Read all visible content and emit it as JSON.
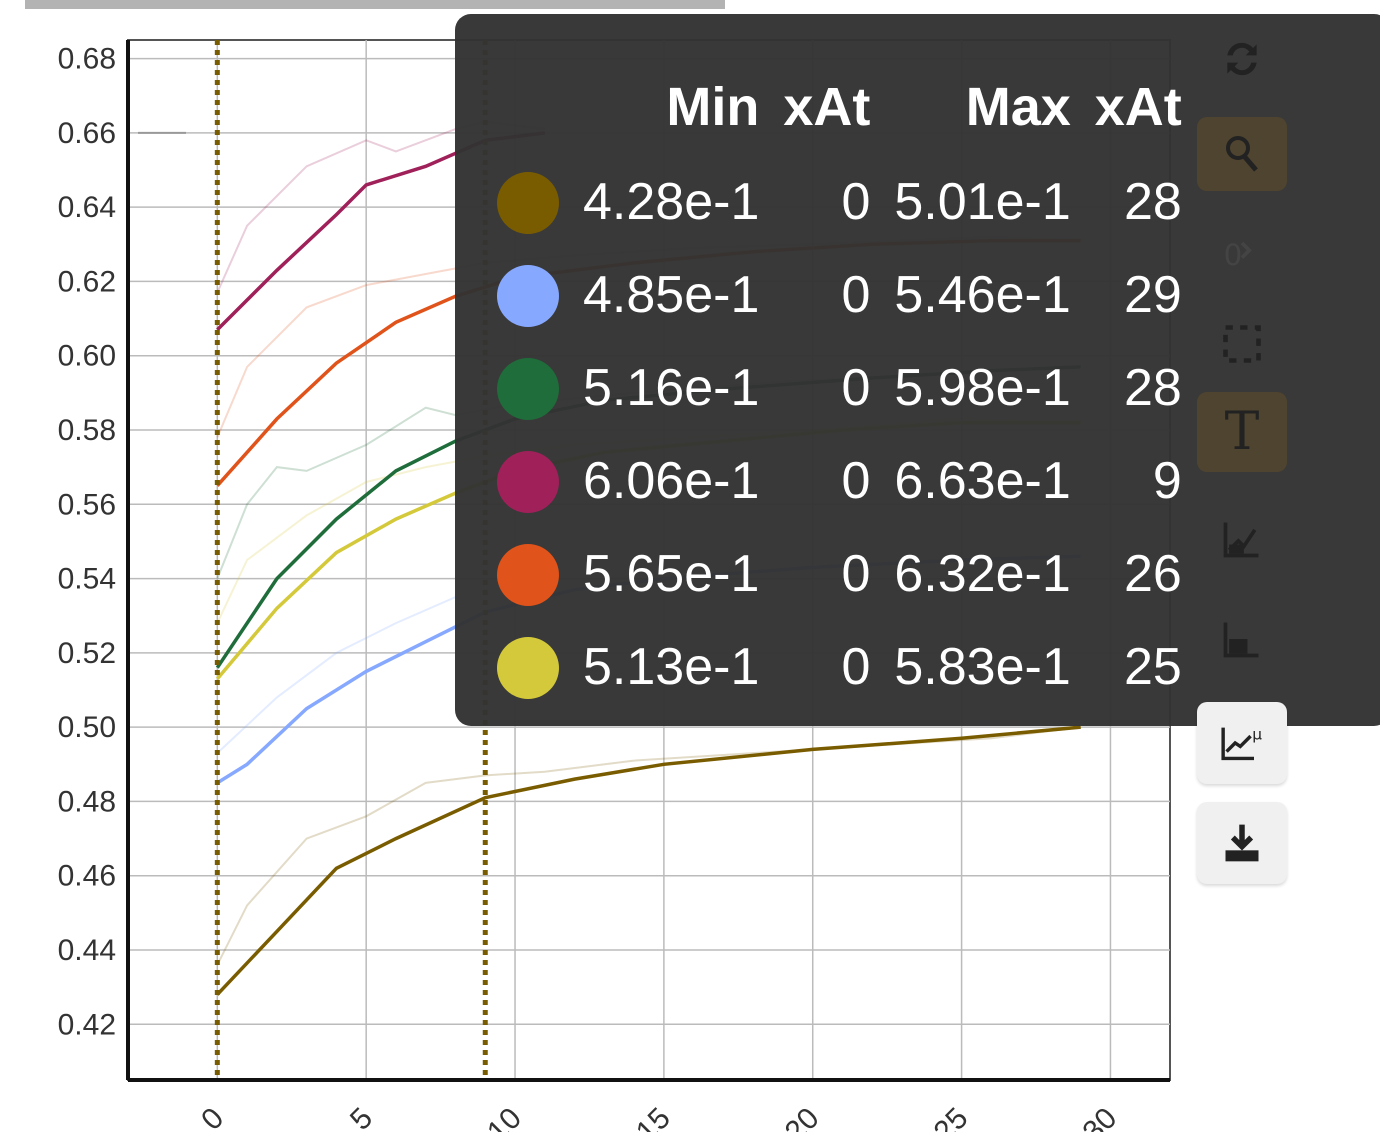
{
  "colors": {
    "line_dark": "#7a5c00",
    "blue": "#86a8ff",
    "green": "#1f6d3a",
    "crimson": "#a0205a",
    "orange": "#e0531a",
    "yellow": "#d4c93a",
    "tooltip_bg": "#333333",
    "grid": "#bbbbbb"
  },
  "toolbar": {
    "icons": [
      "reset-icon",
      "zoom-icon",
      "pan-icon",
      "select-icon",
      "text-icon",
      "smooth-icon",
      "log-icon",
      "line-chart-icon",
      "download-icon"
    ]
  },
  "tooltip": {
    "headers": [
      "Min",
      "xAt",
      "Max",
      "xAt"
    ],
    "rows": [
      {
        "color": "#7a5c00",
        "min": "4.28e-1",
        "min_x": "0",
        "max": "5.01e-1",
        "max_x": "28"
      },
      {
        "color": "#86a8ff",
        "min": "4.85e-1",
        "min_x": "0",
        "max": "5.46e-1",
        "max_x": "29"
      },
      {
        "color": "#1f6d3a",
        "min": "5.16e-1",
        "min_x": "0",
        "max": "5.98e-1",
        "max_x": "28"
      },
      {
        "color": "#a0205a",
        "min": "6.06e-1",
        "min_x": "0",
        "max": "6.63e-1",
        "max_x": "9"
      },
      {
        "color": "#e0531a",
        "min": "5.65e-1",
        "min_x": "0",
        "max": "6.32e-1",
        "max_x": "26"
      },
      {
        "color": "#d4c93a",
        "min": "5.13e-1",
        "min_x": "0",
        "max": "5.83e-1",
        "max_x": "25"
      }
    ]
  },
  "chart_data": {
    "type": "line",
    "xlim": [
      -3,
      32
    ],
    "ylim": [
      0.405,
      0.685
    ],
    "x_ticks": [
      0,
      5,
      10,
      15,
      20,
      25,
      30
    ],
    "y_ticks": [
      "0.42",
      "0.44",
      "0.46",
      "0.48",
      "0.50",
      "0.52",
      "0.54",
      "0.56",
      "0.58",
      "0.60",
      "0.62",
      "0.64",
      "0.66",
      "0.68"
    ],
    "grid": true,
    "vertical_markers": [
      0,
      9
    ],
    "series": [
      {
        "color": "#7a5c00",
        "smoothed": [
          [
            0,
            0.428
          ],
          [
            2,
            0.445
          ],
          [
            4,
            0.462
          ],
          [
            6,
            0.47
          ],
          [
            9,
            0.481
          ],
          [
            12,
            0.486
          ],
          [
            15,
            0.49
          ],
          [
            20,
            0.494
          ],
          [
            25,
            0.497
          ],
          [
            29,
            0.5
          ]
        ],
        "raw": [
          [
            0,
            0.436
          ],
          [
            1,
            0.452
          ],
          [
            3,
            0.47
          ],
          [
            5,
            0.476
          ],
          [
            7,
            0.485
          ],
          [
            9,
            0.487
          ],
          [
            11,
            0.488
          ],
          [
            14,
            0.491
          ],
          [
            18,
            0.493
          ],
          [
            22,
            0.495
          ],
          [
            26,
            0.497
          ],
          [
            29,
            0.5
          ]
        ]
      },
      {
        "color": "#86a8ff",
        "smoothed": [
          [
            0,
            0.485
          ],
          [
            1,
            0.49
          ],
          [
            3,
            0.505
          ],
          [
            5,
            0.515
          ],
          [
            7,
            0.523
          ],
          [
            9,
            0.531
          ],
          [
            12,
            0.537
          ],
          [
            15,
            0.54
          ],
          [
            20,
            0.543
          ],
          [
            25,
            0.545
          ],
          [
            29,
            0.546
          ]
        ],
        "raw": [
          [
            0,
            0.493
          ],
          [
            2,
            0.508
          ],
          [
            4,
            0.52
          ],
          [
            6,
            0.528
          ],
          [
            8,
            0.535
          ],
          [
            10,
            0.537
          ],
          [
            13,
            0.54
          ],
          [
            17,
            0.542
          ],
          [
            22,
            0.544
          ],
          [
            26,
            0.545
          ],
          [
            29,
            0.546
          ]
        ]
      },
      {
        "color": "#1f6d3a",
        "smoothed": [
          [
            0,
            0.516
          ],
          [
            2,
            0.54
          ],
          [
            4,
            0.556
          ],
          [
            6,
            0.569
          ],
          [
            8,
            0.577
          ],
          [
            10,
            0.583
          ],
          [
            13,
            0.588
          ],
          [
            17,
            0.591
          ],
          [
            22,
            0.594
          ],
          [
            26,
            0.596
          ],
          [
            29,
            0.597
          ]
        ],
        "raw": [
          [
            0,
            0.54
          ],
          [
            1,
            0.56
          ],
          [
            2,
            0.57
          ],
          [
            3,
            0.569
          ],
          [
            5,
            0.576
          ],
          [
            7,
            0.586
          ],
          [
            8,
            0.584
          ],
          [
            10,
            0.587
          ],
          [
            14,
            0.59
          ],
          [
            19,
            0.593
          ],
          [
            24,
            0.595
          ],
          [
            29,
            0.597
          ]
        ]
      },
      {
        "color": "#a0205a",
        "smoothed": [
          [
            0,
            0.607
          ],
          [
            2,
            0.623
          ],
          [
            4,
            0.638
          ],
          [
            5,
            0.646
          ],
          [
            7,
            0.651
          ],
          [
            9,
            0.658
          ],
          [
            11,
            0.66
          ]
        ],
        "raw": [
          [
            0,
            0.617
          ],
          [
            1,
            0.635
          ],
          [
            3,
            0.651
          ],
          [
            5,
            0.658
          ],
          [
            6,
            0.655
          ],
          [
            8,
            0.661
          ],
          [
            9,
            0.663
          ],
          [
            11,
            0.661
          ]
        ]
      },
      {
        "color": "#e0531a",
        "smoothed": [
          [
            0,
            0.565
          ],
          [
            2,
            0.583
          ],
          [
            4,
            0.598
          ],
          [
            6,
            0.609
          ],
          [
            8,
            0.616
          ],
          [
            10,
            0.621
          ],
          [
            14,
            0.625
          ],
          [
            18,
            0.628
          ],
          [
            22,
            0.63
          ],
          [
            26,
            0.631
          ],
          [
            29,
            0.631
          ]
        ],
        "raw": [
          [
            0,
            0.578
          ],
          [
            1,
            0.597
          ],
          [
            3,
            0.613
          ],
          [
            5,
            0.619
          ],
          [
            7,
            0.622
          ],
          [
            9,
            0.625
          ],
          [
            12,
            0.627
          ],
          [
            16,
            0.629
          ],
          [
            20,
            0.63
          ],
          [
            26,
            0.632
          ],
          [
            29,
            0.631
          ]
        ]
      },
      {
        "color": "#d4c93a",
        "smoothed": [
          [
            0,
            0.513
          ],
          [
            2,
            0.532
          ],
          [
            4,
            0.547
          ],
          [
            6,
            0.556
          ],
          [
            8,
            0.563
          ],
          [
            10,
            0.569
          ],
          [
            13,
            0.574
          ],
          [
            17,
            0.577
          ],
          [
            21,
            0.58
          ],
          [
            25,
            0.582
          ],
          [
            29,
            0.582
          ]
        ],
        "raw": [
          [
            0,
            0.528
          ],
          [
            1,
            0.545
          ],
          [
            3,
            0.557
          ],
          [
            5,
            0.566
          ],
          [
            7,
            0.57
          ],
          [
            9,
            0.573
          ],
          [
            12,
            0.576
          ],
          [
            16,
            0.578
          ],
          [
            20,
            0.58
          ],
          [
            25,
            0.583
          ],
          [
            29,
            0.582
          ]
        ]
      }
    ]
  }
}
